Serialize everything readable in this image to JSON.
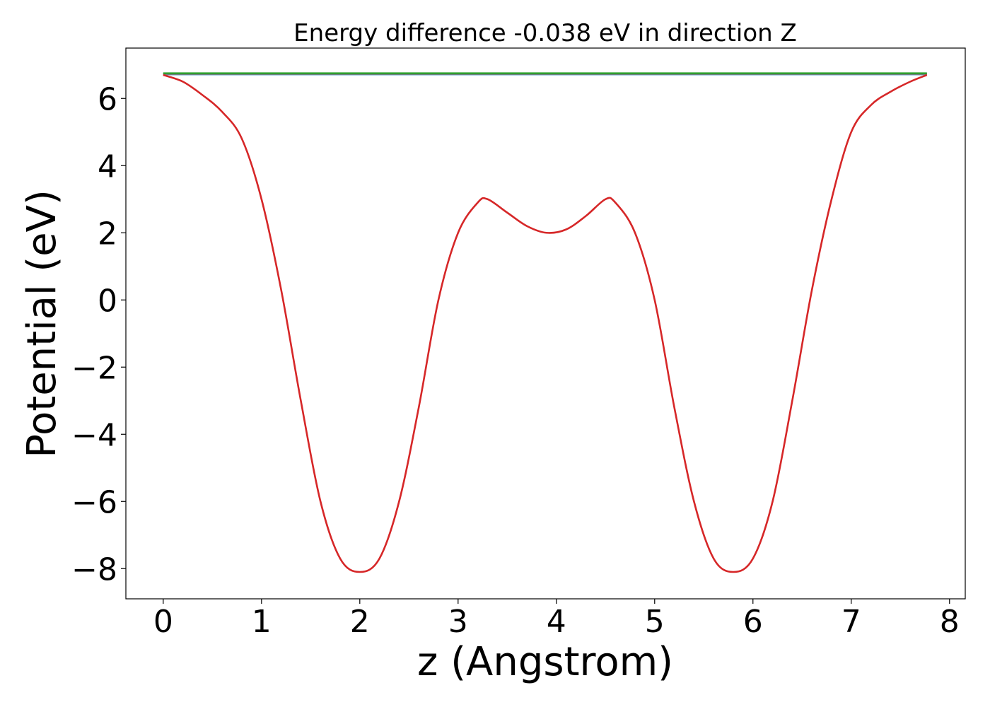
{
  "chart_data": {
    "type": "line",
    "title": "Energy difference -0.038 eV in direction Z",
    "xlabel": "z (Angstrom)",
    "ylabel": "Potential (eV)",
    "xlim": [
      -0.38,
      8.16
    ],
    "ylim": [
      -8.9,
      7.5
    ],
    "xticks": [
      0,
      1,
      2,
      3,
      4,
      5,
      6,
      7,
      8
    ],
    "yticks": [
      -8,
      -6,
      -4,
      -2,
      0,
      2,
      4,
      6
    ],
    "xtick_labels": [
      "0",
      "1",
      "2",
      "3",
      "4",
      "5",
      "6",
      "7",
      "8"
    ],
    "ytick_labels": [
      "−8",
      "−6",
      "−4",
      "−2",
      "0",
      "2",
      "4",
      "6"
    ],
    "grid": false,
    "legend": "none",
    "series": [
      {
        "color": "#d62728",
        "x": [
          0.0,
          0.2,
          0.4,
          0.6,
          0.8,
          1.0,
          1.2,
          1.4,
          1.6,
          1.8,
          2.0,
          2.2,
          2.4,
          2.6,
          2.8,
          3.0,
          3.2,
          3.3,
          3.5,
          3.7,
          3.9,
          4.1,
          4.3,
          4.5,
          4.6,
          4.8,
          5.0,
          5.2,
          5.4,
          5.6,
          5.8,
          6.0,
          6.2,
          6.4,
          6.6,
          6.8,
          7.0,
          7.2,
          7.4,
          7.6,
          7.77
        ],
        "y": [
          6.7,
          6.5,
          6.1,
          5.6,
          4.8,
          3.0,
          0.3,
          -3.0,
          -6.0,
          -7.7,
          -8.1,
          -7.7,
          -6.0,
          -3.2,
          0.0,
          2.0,
          2.9,
          3.0,
          2.6,
          2.2,
          2.0,
          2.1,
          2.5,
          3.0,
          2.9,
          2.0,
          0.0,
          -3.2,
          -6.0,
          -7.7,
          -8.1,
          -7.7,
          -6.0,
          -3.0,
          0.3,
          3.0,
          5.0,
          5.8,
          6.2,
          6.5,
          6.7
        ]
      },
      {
        "color": "#1f77b4",
        "x": [
          0.0,
          7.77
        ],
        "y": [
          6.72,
          6.72
        ]
      },
      {
        "color": "#2ca02c",
        "x": [
          0.0,
          7.77
        ],
        "y": [
          6.75,
          6.75
        ]
      },
      {
        "color": "#7f7f7f",
        "x": [
          0.0,
          7.77
        ],
        "y": [
          6.73,
          6.73
        ]
      }
    ]
  }
}
